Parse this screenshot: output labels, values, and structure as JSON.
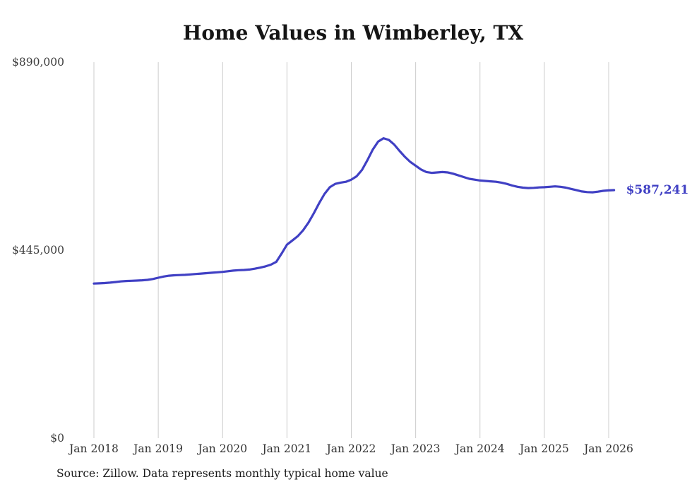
{
  "title": "Home Values in Wimberley, TX",
  "end_label": "$587,241",
  "source_note": "Source: Zillow. Data represents monthly typical home value",
  "colors": {
    "line": "#4040c4",
    "end_label": "#4040c4",
    "grid": "#cccccc",
    "title": "#151515",
    "axis_text": "#3d3d3d"
  },
  "chart_data": {
    "type": "line",
    "title": "Home Values in Wimberley, TX",
    "xlabel": "",
    "ylabel": "",
    "ylim": [
      0,
      890000
    ],
    "grid": "vertical-only",
    "legend": "none",
    "x_tick_labels": [
      "Jan 2018",
      "Jan 2019",
      "Jan 2020",
      "Jan 2021",
      "Jan 2022",
      "Jan 2023",
      "Jan 2024",
      "Jan 2025",
      "Jan 2026"
    ],
    "y_ticks": [
      {
        "value": 0,
        "label": "$0"
      },
      {
        "value": 445000,
        "label": "$445,000"
      },
      {
        "value": 890000,
        "label": "$890,000"
      }
    ],
    "frequency": "monthly",
    "x_start": "2018-01",
    "x_end": "2026-02",
    "last_value": 587241,
    "last_value_label": "$587,241",
    "series": [
      {
        "name": "Typical home value",
        "values": [
          366000,
          366500,
          367200,
          368200,
          369500,
          371000,
          372000,
          372600,
          373100,
          373700,
          374800,
          376800,
          379800,
          382600,
          384600,
          385600,
          386100,
          386600,
          387600,
          388600,
          389600,
          390600,
          391600,
          392600,
          393600,
          395100,
          396600,
          397600,
          398200,
          399200,
          401200,
          403700,
          406700,
          410700,
          417200,
          437000,
          458000,
          468000,
          478000,
          492000,
          510000,
          532000,
          556000,
          578000,
          594000,
          602000,
          605000,
          607000,
          612000,
          620000,
          635000,
          658000,
          683000,
          702000,
          710000,
          706000,
          695000,
          680000,
          666000,
          654000,
          645000,
          636000,
          630000,
          628000,
          629000,
          630000,
          629000,
          626000,
          622000,
          618000,
          614000,
          612000,
          610000,
          609000,
          608000,
          607000,
          605000,
          602000,
          598000,
          595000,
          593000,
          592000,
          592500,
          593500,
          594000,
          595000,
          596000,
          595000,
          593000,
          590000,
          587000,
          584000,
          582500,
          582000,
          583500,
          585500,
          586500,
          587241
        ]
      }
    ]
  }
}
